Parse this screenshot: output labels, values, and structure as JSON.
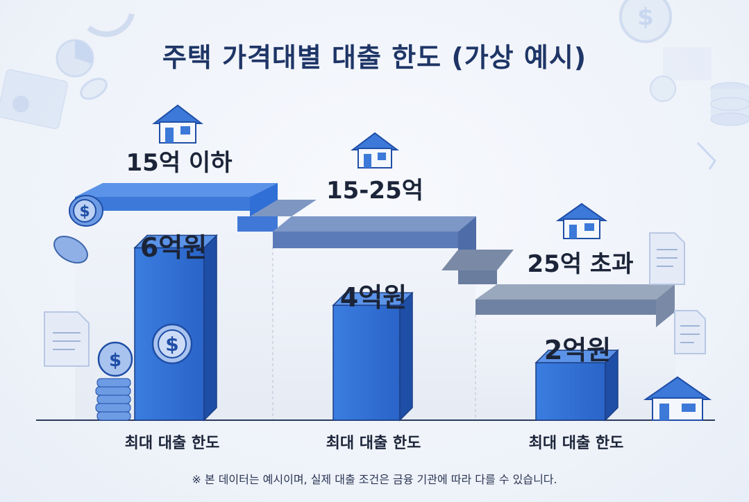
{
  "title": "주택 가격대별 대출 한도 (가상 예시)",
  "footnote": "※ 본 데이터는 예시이며, 실제 대출 조건은 금융 기관에 따라 다를 수 있습니다.",
  "chart_data": {
    "type": "bar",
    "title": "주택 가격대별 대출 한도 (가상 예시)",
    "categories": [
      "15억 이하",
      "15-25억",
      "25억 초과"
    ],
    "values": [
      6,
      4,
      2
    ],
    "value_labels": [
      "6억원",
      "4억원",
      "2억원"
    ],
    "category_sublabel": "최대 대출 한도",
    "ylim": [
      0,
      7
    ],
    "grid": false,
    "legend": "none"
  },
  "colors": {
    "bar_front": "#2f6fd6",
    "bar_side": "#1f4ea6",
    "bar_top": "#5b93e8",
    "step_blue": "#4a86e0",
    "step_slate": "#6f82a3",
    "title": "#1e3566"
  },
  "decor_icons": [
    "house-icon",
    "coin-icon",
    "coin-stack-icon",
    "document-icon",
    "banknote-icon",
    "database-icon",
    "pie-chart-icon"
  ]
}
